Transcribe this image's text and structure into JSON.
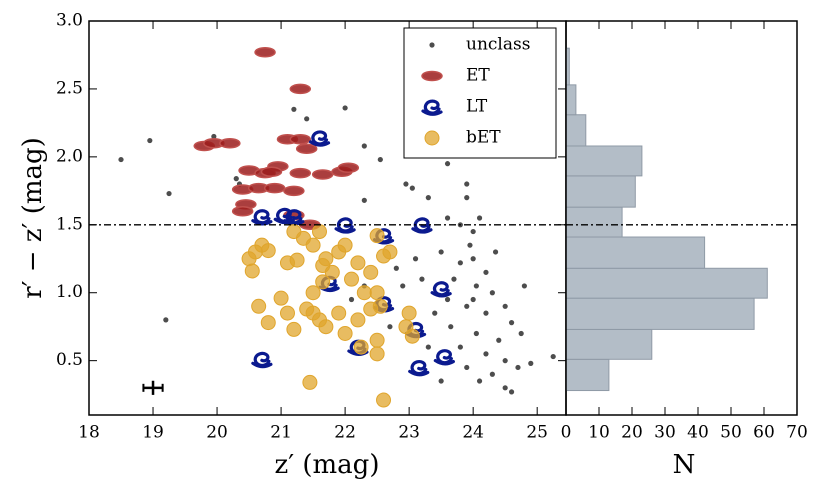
{
  "chart_data": [
    {
      "type": "scatter",
      "xlabel": "z′ (mag)",
      "ylabel": "r′ − z′ (mag)",
      "xlim": [
        18,
        25.45
      ],
      "ylim": [
        0.1,
        3.0
      ],
      "xticks": [
        18,
        19,
        20,
        21,
        22,
        23,
        24,
        25
      ],
      "yticks": [
        0.5,
        {
          "value": 1,
          "label": "1.0"
        },
        1.5,
        {
          "value": 2,
          "label": "2.0"
        },
        2.5,
        {
          "value": 3,
          "label": "3.0"
        }
      ],
      "hline": 1.5,
      "legend": "upper right",
      "errorbar": {
        "x": 19,
        "y": 0.3,
        "xerr": 0.15,
        "yerr": 0.03
      },
      "series": [
        {
          "name": "unclass",
          "color": "#111111",
          "marker": "dot",
          "x": [
            18.5,
            18.95,
            19.25,
            19.2,
            19.95,
            20.3,
            20.35,
            21.2,
            21.4,
            22.0,
            22.3,
            22.3,
            22.55,
            23.05,
            23.1,
            23.3,
            22.95,
            23.6,
            23.3,
            23.6,
            23.9,
            23.8,
            24.0,
            23.95,
            23.5,
            23.8,
            24.0,
            24.2,
            23.7,
            24.05,
            24.3,
            23.6,
            23.9,
            24.2,
            24.5,
            24.6,
            24.75,
            24.4,
            24.05,
            23.8,
            24.2,
            24.5,
            24.7,
            24.9,
            24.3,
            24.1,
            23.9,
            24.5,
            24.6,
            25.25,
            23.2,
            23.1,
            22.9,
            22.8,
            22.1,
            22.3,
            23.4,
            23.65,
            24.0,
            22.7,
            23.3,
            24.35,
            24.8,
            23.5,
            23.9,
            24.1
          ],
          "values": [
            1.98,
            2.12,
            1.73,
            0.8,
            2.15,
            1.84,
            1.8,
            2.35,
            2.28,
            2.36,
            2.08,
            1.68,
            1.98,
            1.77,
            2.1,
            2.25,
            1.8,
            1.55,
            1.7,
            1.95,
            1.8,
            1.5,
            1.45,
            1.35,
            1.3,
            1.22,
            1.25,
            1.15,
            1.1,
            1.05,
            1.0,
            0.95,
            0.9,
            0.85,
            0.9,
            0.78,
            0.7,
            0.65,
            0.7,
            0.6,
            0.55,
            0.5,
            0.45,
            0.48,
            0.4,
            0.35,
            0.45,
            0.3,
            0.27,
            0.53,
            1.1,
            1.25,
            1.05,
            1.18,
            0.95,
            1.05,
            0.85,
            0.75,
            0.95,
            0.75,
            0.6,
            1.3,
            1.05,
            0.35,
            1.7,
            1.55
          ]
        },
        {
          "name": "ET",
          "color": "#9b1c1c",
          "marker": "ellipse",
          "x": [
            20.75,
            21.3,
            19.8,
            19.95,
            20.2,
            20.5,
            21.1,
            21.3,
            21.4,
            20.95,
            20.75,
            20.85,
            21.3,
            21.65,
            21.95,
            22.05,
            20.4,
            20.65,
            20.9,
            21.2,
            20.45,
            20.4,
            21.2,
            21.45
          ],
          "values": [
            2.77,
            2.5,
            2.08,
            2.1,
            2.1,
            1.9,
            2.13,
            2.13,
            2.06,
            1.93,
            1.88,
            1.89,
            1.88,
            1.87,
            1.89,
            1.92,
            1.76,
            1.77,
            1.77,
            1.75,
            1.65,
            1.6,
            1.57,
            1.5
          ]
        },
        {
          "name": "LT",
          "color": "#0b1a8f",
          "marker": "spiral",
          "x": [
            21.6,
            20.7,
            21.05,
            21.2,
            22.0,
            22.6,
            23.2,
            21.75,
            23.5,
            22.6,
            23.1,
            22.2,
            20.7,
            23.15,
            23.55
          ],
          "values": [
            2.14,
            1.56,
            1.57,
            1.56,
            1.5,
            1.42,
            1.5,
            1.07,
            1.03,
            0.92,
            0.73,
            0.6,
            0.51,
            0.45,
            0.53
          ]
        },
        {
          "name": "bET",
          "color": "#e0a52c",
          "marker": "circle",
          "x": [
            20.5,
            20.55,
            20.7,
            20.8,
            20.6,
            21.1,
            21.25,
            21.2,
            21.35,
            21.5,
            21.6,
            21.65,
            21.7,
            21.5,
            21.65,
            21.8,
            21.9,
            22.0,
            22.1,
            22.2,
            22.3,
            22.4,
            22.5,
            22.6,
            22.5,
            22.4,
            22.2,
            21.9,
            21.5,
            21.4,
            21.6,
            21.2,
            21.1,
            21.0,
            20.65,
            20.8,
            22.0,
            22.5,
            22.5,
            22.95,
            23.05,
            23.0,
            22.7,
            21.45,
            22.6,
            21.7,
            22.55,
            22.25
          ],
          "values": [
            1.25,
            1.16,
            1.35,
            1.31,
            1.3,
            1.22,
            1.24,
            1.45,
            1.4,
            1.35,
            1.45,
            1.2,
            1.25,
            1.0,
            1.08,
            1.15,
            1.3,
            1.35,
            1.1,
            1.22,
            1.0,
            1.15,
            1.42,
            1.27,
            1.0,
            0.88,
            0.8,
            0.85,
            0.85,
            0.88,
            0.8,
            0.73,
            0.85,
            0.96,
            0.9,
            0.78,
            0.7,
            0.65,
            0.55,
            0.75,
            0.68,
            0.85,
            1.3,
            0.34,
            0.21,
            0.75,
            0.9,
            0.6
          ]
        }
      ]
    },
    {
      "type": "histogram",
      "orientation": "horizontal",
      "xlabel": "N",
      "xlim": [
        0,
        70
      ],
      "ylim": [
        0.1,
        3.0
      ],
      "xticks": [
        0,
        10,
        20,
        30,
        40,
        50,
        60,
        70
      ],
      "hline": 1.5,
      "color": "#b3bdc7",
      "bins": [
        0.28,
        0.51,
        0.73,
        0.96,
        1.18,
        1.41,
        1.63,
        1.86,
        2.08,
        2.31,
        2.53,
        2.8
      ],
      "values": [
        13,
        26,
        57,
        61,
        42,
        17,
        21,
        23,
        6,
        3,
        1
      ]
    }
  ]
}
